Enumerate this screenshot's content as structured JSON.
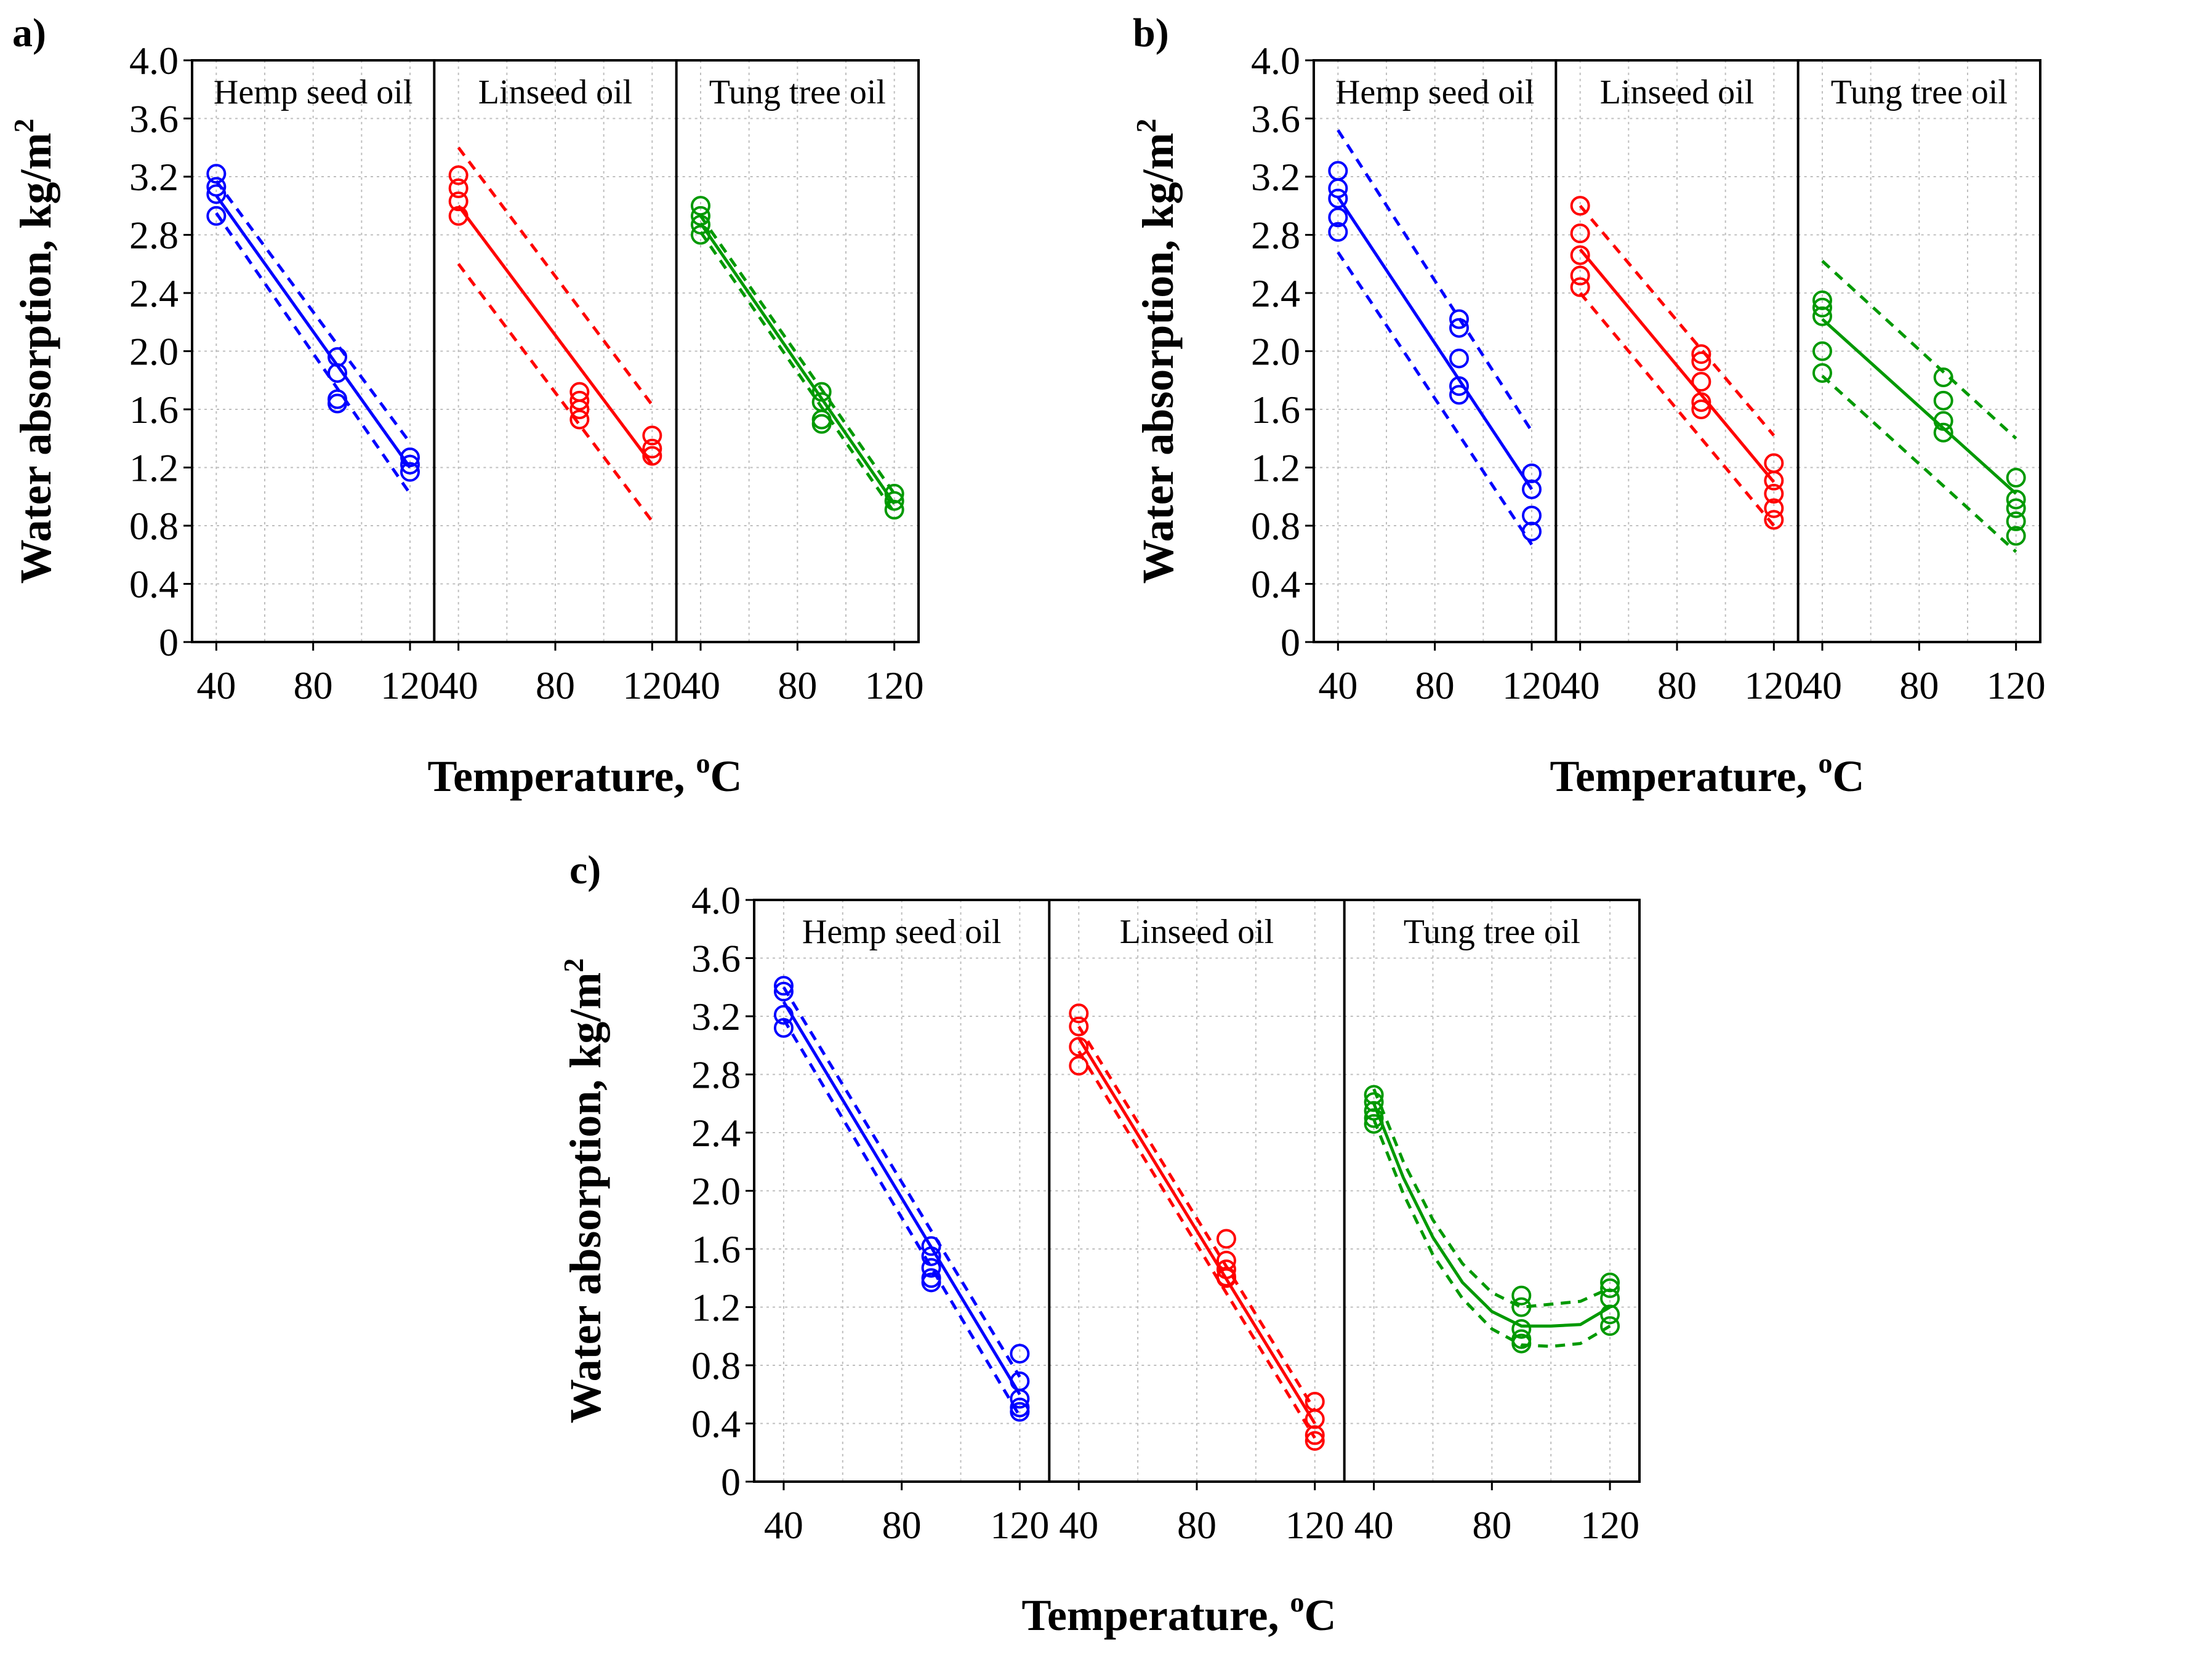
{
  "figure": {
    "xlabel": "Temperature, ",
    "xlabel_unit_sup": "o",
    "xlabel_unit": "C",
    "ylabel": "Water absorption, kg/m",
    "ylabel_sup": "2"
  },
  "chart_data": [
    {
      "id": "a",
      "label": "a)",
      "type": "scatter",
      "xticks": [
        "40",
        "80",
        "120"
      ],
      "yticks": [
        "0",
        "0.4",
        "0.8",
        "1.2",
        "1.6",
        "2.0",
        "2.4",
        "2.8",
        "3.2",
        "3.6",
        "4.0"
      ],
      "ylim": [
        0,
        4.0
      ],
      "xlim": [
        30,
        130
      ],
      "grid": true,
      "panels": [
        {
          "name": "Hemp seed oil",
          "color": "#0000ff",
          "fit": "linear",
          "points": [
            [
              40,
              3.22
            ],
            [
              40,
              3.13
            ],
            [
              40,
              3.08
            ],
            [
              40,
              2.93
            ],
            [
              90,
              1.96
            ],
            [
              90,
              1.85
            ],
            [
              90,
              1.67
            ],
            [
              90,
              1.64
            ],
            [
              120,
              1.27
            ],
            [
              120,
              1.22
            ],
            [
              120,
              1.17
            ]
          ],
          "fit_line": [
            [
              40,
              3.07
            ],
            [
              120,
              1.2
            ]
          ],
          "band_upper": [
            [
              40,
              3.17
            ],
            [
              120,
              1.37
            ]
          ],
          "band_lower": [
            [
              40,
              2.95
            ],
            [
              120,
              1.02
            ]
          ]
        },
        {
          "name": "Linseed oil",
          "color": "#ff0000",
          "fit": "linear",
          "points": [
            [
              40,
              3.21
            ],
            [
              40,
              3.12
            ],
            [
              40,
              3.03
            ],
            [
              40,
              2.93
            ],
            [
              90,
              1.72
            ],
            [
              90,
              1.66
            ],
            [
              90,
              1.6
            ],
            [
              90,
              1.53
            ],
            [
              120,
              1.42
            ],
            [
              120,
              1.33
            ],
            [
              120,
              1.28
            ]
          ],
          "fit_line": [
            [
              40,
              3.0
            ],
            [
              120,
              1.22
            ]
          ],
          "band_upper": [
            [
              40,
              3.4
            ],
            [
              120,
              1.63
            ]
          ],
          "band_lower": [
            [
              40,
              2.6
            ],
            [
              120,
              0.83
            ]
          ]
        },
        {
          "name": "Tung tree oil",
          "color": "#009900",
          "fit": "linear",
          "points": [
            [
              40,
              3.0
            ],
            [
              40,
              2.93
            ],
            [
              40,
              2.87
            ],
            [
              40,
              2.8
            ],
            [
              90,
              1.72
            ],
            [
              90,
              1.65
            ],
            [
              90,
              1.53
            ],
            [
              90,
              1.5
            ],
            [
              120,
              1.02
            ],
            [
              120,
              0.97
            ],
            [
              120,
              0.91
            ]
          ],
          "fit_line": [
            [
              40,
              2.88
            ],
            [
              120,
              0.95
            ]
          ],
          "band_upper": [
            [
              40,
              2.93
            ],
            [
              120,
              1.02
            ]
          ],
          "band_lower": [
            [
              40,
              2.82
            ],
            [
              120,
              0.89
            ]
          ]
        }
      ]
    },
    {
      "id": "b",
      "label": "b)",
      "type": "scatter",
      "xticks": [
        "40",
        "80",
        "120"
      ],
      "yticks": [
        "0",
        "0.4",
        "0.8",
        "1.2",
        "1.6",
        "2.0",
        "2.4",
        "2.8",
        "3.2",
        "3.6",
        "4.0"
      ],
      "ylim": [
        0,
        4.0
      ],
      "xlim": [
        30,
        130
      ],
      "grid": true,
      "panels": [
        {
          "name": "Hemp seed oil",
          "color": "#0000ff",
          "fit": "linear",
          "points": [
            [
              40,
              3.24
            ],
            [
              40,
              3.12
            ],
            [
              40,
              3.05
            ],
            [
              40,
              2.92
            ],
            [
              40,
              2.82
            ],
            [
              90,
              2.22
            ],
            [
              90,
              2.16
            ],
            [
              90,
              1.95
            ],
            [
              90,
              1.76
            ],
            [
              90,
              1.7
            ],
            [
              120,
              1.16
            ],
            [
              120,
              1.05
            ],
            [
              120,
              0.87
            ],
            [
              120,
              0.76
            ]
          ],
          "fit_line": [
            [
              40,
              3.06
            ],
            [
              120,
              1.05
            ]
          ],
          "band_upper": [
            [
              40,
              3.52
            ],
            [
              120,
              1.45
            ]
          ],
          "band_lower": [
            [
              40,
              2.68
            ],
            [
              120,
              0.67
            ]
          ]
        },
        {
          "name": "Linseed oil",
          "color": "#ff0000",
          "fit": "linear",
          "points": [
            [
              40,
              3.0
            ],
            [
              40,
              2.81
            ],
            [
              40,
              2.66
            ],
            [
              40,
              2.52
            ],
            [
              40,
              2.44
            ],
            [
              90,
              1.98
            ],
            [
              90,
              1.93
            ],
            [
              90,
              1.79
            ],
            [
              90,
              1.65
            ],
            [
              90,
              1.6
            ],
            [
              120,
              1.23
            ],
            [
              120,
              1.11
            ],
            [
              120,
              1.02
            ],
            [
              120,
              0.92
            ],
            [
              120,
              0.84
            ]
          ],
          "fit_line": [
            [
              40,
              2.7
            ],
            [
              120,
              1.1
            ]
          ],
          "band_upper": [
            [
              40,
              3.0
            ],
            [
              120,
              1.42
            ]
          ],
          "band_lower": [
            [
              40,
              2.4
            ],
            [
              120,
              0.8
            ]
          ]
        },
        {
          "name": "Tung tree oil",
          "color": "#009900",
          "fit": "linear",
          "points": [
            [
              40,
              2.35
            ],
            [
              40,
              2.3
            ],
            [
              40,
              2.24
            ],
            [
              40,
              2.0
            ],
            [
              40,
              1.85
            ],
            [
              90,
              1.82
            ],
            [
              90,
              1.66
            ],
            [
              90,
              1.52
            ],
            [
              90,
              1.44
            ],
            [
              120,
              1.13
            ],
            [
              120,
              0.98
            ],
            [
              120,
              0.92
            ],
            [
              120,
              0.83
            ],
            [
              120,
              0.73
            ]
          ],
          "fit_line": [
            [
              40,
              2.22
            ],
            [
              120,
              1.02
            ]
          ],
          "band_upper": [
            [
              40,
              2.62
            ],
            [
              120,
              1.4
            ]
          ],
          "band_lower": [
            [
              40,
              1.83
            ],
            [
              120,
              0.62
            ]
          ]
        }
      ]
    },
    {
      "id": "c",
      "label": "c)",
      "type": "scatter",
      "xticks": [
        "40",
        "80",
        "120"
      ],
      "yticks": [
        "0",
        "0.4",
        "0.8",
        "1.2",
        "1.6",
        "2.0",
        "2.4",
        "2.8",
        "3.2",
        "3.6",
        "4.0"
      ],
      "ylim": [
        0,
        4.0
      ],
      "xlim": [
        30,
        130
      ],
      "grid": true,
      "panels": [
        {
          "name": "Hemp seed oil",
          "color": "#0000ff",
          "fit": "linear",
          "points": [
            [
              40,
              3.41
            ],
            [
              40,
              3.37
            ],
            [
              40,
              3.21
            ],
            [
              40,
              3.12
            ],
            [
              90,
              1.62
            ],
            [
              90,
              1.55
            ],
            [
              90,
              1.47
            ],
            [
              90,
              1.4
            ],
            [
              90,
              1.37
            ],
            [
              120,
              0.88
            ],
            [
              120,
              0.69
            ],
            [
              120,
              0.57
            ],
            [
              120,
              0.51
            ],
            [
              120,
              0.48
            ]
          ],
          "fit_line": [
            [
              40,
              3.3
            ],
            [
              120,
              0.6
            ]
          ],
          "band_upper": [
            [
              40,
              3.4
            ],
            [
              120,
              0.72
            ]
          ],
          "band_lower": [
            [
              40,
              3.18
            ],
            [
              120,
              0.45
            ]
          ]
        },
        {
          "name": "Linseed oil",
          "color": "#ff0000",
          "fit": "linear",
          "points": [
            [
              40,
              3.22
            ],
            [
              40,
              3.13
            ],
            [
              40,
              2.99
            ],
            [
              40,
              2.86
            ],
            [
              90,
              1.67
            ],
            [
              90,
              1.52
            ],
            [
              90,
              1.46
            ],
            [
              90,
              1.41
            ],
            [
              90,
              1.4
            ],
            [
              120,
              0.55
            ],
            [
              120,
              0.43
            ],
            [
              120,
              0.32
            ],
            [
              120,
              0.28
            ]
          ],
          "fit_line": [
            [
              40,
              3.05
            ],
            [
              120,
              0.4
            ]
          ],
          "band_upper": [
            [
              40,
              3.13
            ],
            [
              120,
              0.49
            ]
          ],
          "band_lower": [
            [
              40,
              2.96
            ],
            [
              120,
              0.3
            ]
          ]
        },
        {
          "name": "Tung tree oil",
          "color": "#009900",
          "fit": "quadratic",
          "points": [
            [
              40,
              2.66
            ],
            [
              40,
              2.61
            ],
            [
              40,
              2.55
            ],
            [
              40,
              2.5
            ],
            [
              40,
              2.46
            ],
            [
              90,
              1.28
            ],
            [
              90,
              1.2
            ],
            [
              90,
              1.05
            ],
            [
              90,
              0.98
            ],
            [
              90,
              0.95
            ],
            [
              120,
              1.37
            ],
            [
              120,
              1.33
            ],
            [
              120,
              1.26
            ],
            [
              120,
              1.15
            ],
            [
              120,
              1.07
            ]
          ],
          "fit_line": [
            [
              40,
              2.6
            ],
            [
              50,
              2.09
            ],
            [
              60,
              1.68
            ],
            [
              70,
              1.37
            ],
            [
              80,
              1.17
            ],
            [
              90,
              1.07
            ],
            [
              100,
              1.07
            ],
            [
              110,
              1.08
            ],
            [
              120,
              1.2
            ]
          ],
          "band_upper": [
            [
              40,
              2.7
            ],
            [
              50,
              2.2
            ],
            [
              60,
              1.8
            ],
            [
              70,
              1.5
            ],
            [
              80,
              1.3
            ],
            [
              90,
              1.2
            ],
            [
              100,
              1.22
            ],
            [
              110,
              1.24
            ],
            [
              120,
              1.33
            ]
          ],
          "band_lower": [
            [
              40,
              2.49
            ],
            [
              50,
              1.98
            ],
            [
              60,
              1.56
            ],
            [
              70,
              1.26
            ],
            [
              80,
              1.05
            ],
            [
              90,
              0.94
            ],
            [
              100,
              0.93
            ],
            [
              110,
              0.95
            ],
            [
              120,
              1.07
            ]
          ]
        }
      ]
    }
  ]
}
